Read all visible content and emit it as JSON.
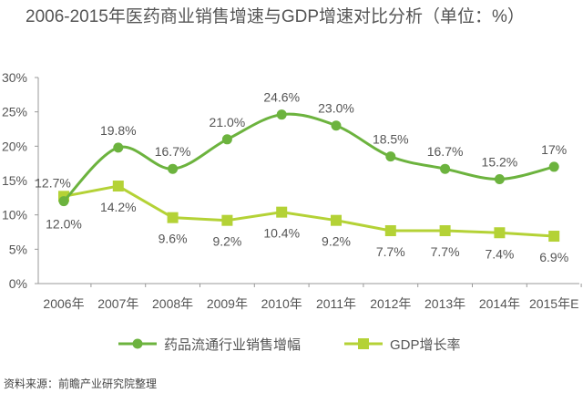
{
  "chart_data": {
    "type": "line",
    "title": "2006-2015年医药商业销售增速与GDP增速对比分析（单位：%）",
    "categories": [
      "2006年",
      "2007年",
      "2008年",
      "2009年",
      "2010年",
      "2011年",
      "2012年",
      "2013年",
      "2014年",
      "2015年E"
    ],
    "yticks": [
      "0%",
      "5%",
      "10%",
      "15%",
      "20%",
      "25%",
      "30%"
    ],
    "ylim": [
      0,
      30
    ],
    "xlabel": "",
    "ylabel": "",
    "grid": false,
    "legend_position": "bottom",
    "series": [
      {
        "name": "药品流通行业销售增幅",
        "color": "#6cb33e",
        "marker": "circle",
        "smooth": true,
        "values": [
          12.0,
          19.8,
          16.7,
          21.0,
          24.6,
          23.0,
          18.5,
          16.7,
          15.2,
          17
        ],
        "labels": [
          "12.0%",
          "19.8%",
          "16.7%",
          "21.0%",
          "24.6%",
          "23.0%",
          "18.5%",
          "16.7%",
          "15.2%",
          "17%"
        ]
      },
      {
        "name": "GDP增长率",
        "color": "#b4d236",
        "marker": "square",
        "smooth": false,
        "values": [
          12.7,
          14.2,
          9.6,
          9.2,
          10.4,
          9.2,
          7.7,
          7.7,
          7.4,
          6.9
        ],
        "labels": [
          "12.7%",
          "14.2%",
          "9.6%",
          "9.2%",
          "10.4%",
          "9.2%",
          "7.7%",
          "7.7%",
          "7.4%",
          "6.9%"
        ]
      }
    ]
  },
  "source": "资料来源：前瞻产业研究院整理"
}
